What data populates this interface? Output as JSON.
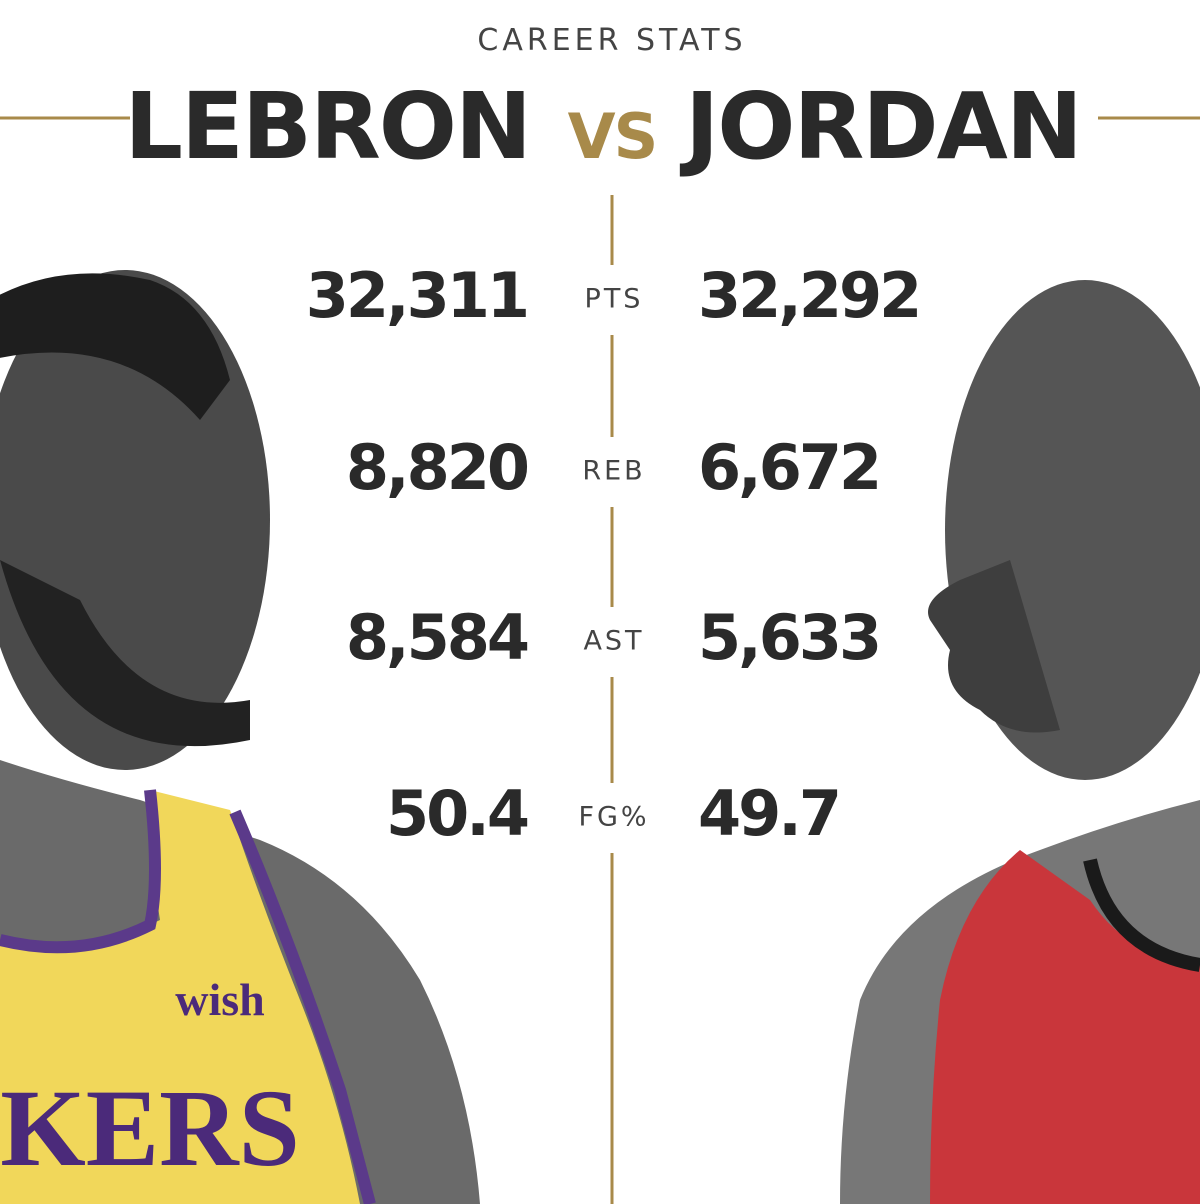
{
  "header": {
    "subtitle": "CAREER STATS",
    "left_name": "LEBRON",
    "vs": "VS",
    "right_name": "JORDAN"
  },
  "stats": [
    {
      "label": "PTS",
      "left": "32,311",
      "right": "32,292"
    },
    {
      "label": "REB",
      "left": "8,820",
      "right": "6,672"
    },
    {
      "label": "AST",
      "left": "8,584",
      "right": "5,633"
    },
    {
      "label": "FG%",
      "left": "50.4",
      "right": "49.7"
    }
  ],
  "jersey": {
    "sponsor": "wish",
    "team": "KERS"
  }
}
